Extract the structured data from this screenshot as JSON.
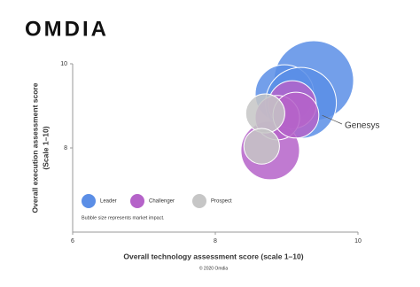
{
  "chart_data": {
    "type": "bubble",
    "logo": "OMDIA",
    "xlabel": "Overall technology assessment score (scale 1–10)",
    "ylabel": [
      "Overall execution assessment score",
      "(Scale 1–10)"
    ],
    "note": "Bubble size represents market impact.",
    "footer": "© 2020 Omdia",
    "annotation": "Genesys",
    "xlim": [
      6,
      10
    ],
    "xticks": [
      6,
      8,
      10
    ],
    "ylim": [
      6,
      10
    ],
    "yticks": [
      8,
      10
    ],
    "series": [
      {
        "name": "Leader",
        "color": "#5b8ee6",
        "x": [
          9.38,
          8.97,
          9.2
        ],
        "values": [
          9.6,
          9.28,
          9.07
        ],
        "sizes": [
          100,
          54,
          79
        ]
      },
      {
        "name": "Challenger",
        "color": "#b563c9",
        "x": [
          8.77,
          9.08,
          8.87,
          9.13
        ],
        "values": [
          7.94,
          9.03,
          8.72,
          8.78
        ],
        "sizes": [
          54,
          36,
          31,
          33
        ]
      },
      {
        "name": "Prospect",
        "color": "#c6c6c6",
        "x": [
          8.7,
          8.65
        ],
        "values": [
          8.82,
          8.04
        ],
        "sizes": [
          24,
          20
        ]
      }
    ]
  }
}
